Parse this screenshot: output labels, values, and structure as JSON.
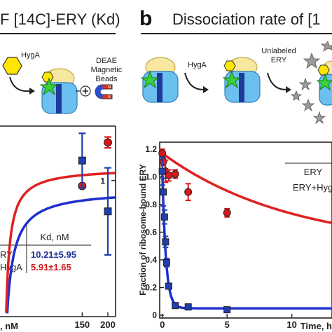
{
  "header": {
    "left_title": "F [14C]-ERY (Kd)",
    "panel_b_letter": "b",
    "right_title": "Dissociation rate of [1"
  },
  "schematic": {
    "left": {
      "hyga_label": "HygA",
      "beads_label_line1": "DEAE",
      "beads_label_line2": "Magnetic",
      "beads_label_line3": "Beads",
      "magnet_n": "N",
      "magnet_s": "S"
    },
    "right": {
      "hyga_label": "HygA",
      "unlabeled_line1": "Unlabeled",
      "unlabeled_line2": "ERY"
    }
  },
  "colors": {
    "red": "#e02020",
    "blue": "#1f2fd0",
    "red_marker": "#d7191c",
    "blue_marker": "#1f3fb0"
  },
  "left_chart": {
    "type": "scatter",
    "x_ticks": [
      150,
      200
    ],
    "xlabel_fragment": ", nM",
    "y_tick_visible": "1",
    "xlim": [
      -10,
      215
    ],
    "ylim": [
      0.25,
      1.3
    ],
    "series": [
      {
        "name": "ERY",
        "color": "red",
        "x": [
          150,
          200
        ],
        "y": [
          0.97,
          1.21
        ],
        "err": [
          0.0,
          0.03
        ]
      },
      {
        "name": "ERY + HygA",
        "color": "blue",
        "x": [
          150,
          200
        ],
        "y": [
          1.11,
          0.83
        ],
        "err": [
          0.15,
          0.24
        ]
      }
    ],
    "fit_red": {
      "plateau": 1.07,
      "kd": 5.91
    },
    "fit_blue": {
      "plateau": 0.95,
      "kd": 10.21
    },
    "table": {
      "header": "Kd, nM",
      "rows": [
        {
          "label": "RY",
          "value": "10.21±5.95",
          "color": "blue"
        },
        {
          "label": "HygA",
          "value": "5.91±1.65",
          "color": "red"
        }
      ]
    }
  },
  "right_chart": {
    "type": "scatter",
    "ylabel": "Fraction of ribosome-bound ERY",
    "xlabel": "Time, h",
    "x_ticks": [
      0,
      5,
      10
    ],
    "y_ticks": [
      "0",
      "0.2",
      "0.4",
      "0.6",
      "0.8",
      "1.0",
      "1.2"
    ],
    "xlim": [
      -0.2,
      13.1
    ],
    "ylim": [
      -0.02,
      1.25
    ],
    "series": [
      {
        "name": "ERY+HygA",
        "color": "red",
        "x": [
          0,
          0.08,
          0.25,
          0.5,
          1,
          2,
          5
        ],
        "y": [
          1.17,
          1.11,
          1.04,
          1.01,
          1.02,
          0.89,
          0.74
        ],
        "err": [
          0.03,
          0.03,
          0.08,
          0.04,
          0.03,
          0.06,
          0.03
        ]
      },
      {
        "name": "ERY",
        "color": "blue",
        "x": [
          0,
          0.08,
          0.17,
          0.25,
          0.33,
          0.5,
          1,
          2,
          5
        ],
        "y": [
          1.04,
          0.89,
          0.71,
          0.53,
          0.38,
          0.21,
          0.07,
          0.06,
          0.04
        ],
        "err": [
          0.1,
          0.1,
          0.05,
          0.04,
          0.03,
          0.02,
          0.02,
          0.02,
          0.01
        ]
      }
    ],
    "fit_red": {
      "a": 0.69,
      "tau": 10.0,
      "c": 0.48
    },
    "fit_blue": {
      "a": 1.0,
      "tau": 0.28,
      "c": 0.05
    },
    "legend": {
      "line1": "ERY",
      "line2": "ERY+HygA"
    }
  }
}
